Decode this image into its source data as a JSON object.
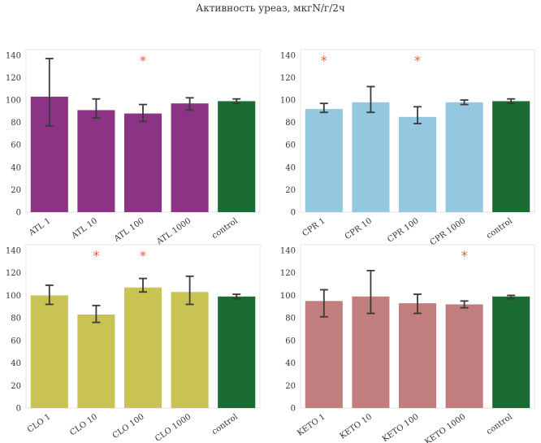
{
  "title": "Активность уреаз, мкгN/г/2ч",
  "colors": {
    "atl": "#8b3384",
    "cpr": "#94c7e0",
    "clo": "#c9c354",
    "keto": "#c17e7e",
    "control": "#1d6b34",
    "star": "#f05a3c",
    "error_bar": "#3a3a3a",
    "panel_border": "#e3e3e3"
  },
  "chart_data": [
    {
      "type": "bar",
      "categories": [
        "ATL 1",
        "ATL 10",
        "ATL 100",
        "ATL 1000",
        "control"
      ],
      "values": [
        103,
        91,
        88,
        97,
        99
      ],
      "errors": [
        [
          77,
          137
        ],
        [
          84,
          101
        ],
        [
          81,
          96
        ],
        [
          91,
          102
        ],
        [
          97,
          101
        ]
      ],
      "significant": [
        false,
        false,
        true,
        false,
        false
      ],
      "ylim": [
        0,
        145
      ],
      "yticks": [
        0,
        20,
        40,
        60,
        80,
        100,
        120,
        140
      ],
      "star_label": "*",
      "grid": false
    },
    {
      "type": "bar",
      "categories": [
        "CPR 1",
        "CPR 10",
        "CPR 100",
        "CPR 1000",
        "control"
      ],
      "values": [
        92,
        98,
        85,
        98,
        99
      ],
      "errors": [
        [
          89,
          97
        ],
        [
          89,
          112
        ],
        [
          79,
          94
        ],
        [
          96,
          100
        ],
        [
          97,
          101
        ]
      ],
      "significant": [
        true,
        false,
        true,
        false,
        false
      ],
      "ylim": [
        0,
        145
      ],
      "yticks": [
        0,
        20,
        40,
        60,
        80,
        100,
        120,
        140
      ],
      "star_label": "*",
      "grid": false
    },
    {
      "type": "bar",
      "categories": [
        "CLO 1",
        "CLO 10",
        "CLO 100",
        "CLO 1000",
        "control"
      ],
      "values": [
        100,
        83,
        107,
        103,
        99
      ],
      "errors": [
        [
          92,
          109
        ],
        [
          76,
          91
        ],
        [
          103,
          115
        ],
        [
          92,
          117
        ],
        [
          97,
          101
        ]
      ],
      "significant": [
        false,
        true,
        true,
        false,
        false
      ],
      "ylim": [
        0,
        145
      ],
      "yticks": [
        0,
        20,
        40,
        60,
        80,
        100,
        120,
        140
      ],
      "star_label": "*",
      "grid": false
    },
    {
      "type": "bar",
      "categories": [
        "KETO 1",
        "KETO 10",
        "KETO 100",
        "KETO 1000",
        "control"
      ],
      "values": [
        95,
        99,
        93,
        92,
        99
      ],
      "errors": [
        [
          81,
          105
        ],
        [
          84,
          122
        ],
        [
          84,
          101
        ],
        [
          89,
          95
        ],
        [
          97,
          100
        ]
      ],
      "significant": [
        false,
        false,
        false,
        true,
        false
      ],
      "ylim": [
        0,
        145
      ],
      "yticks": [
        0,
        20,
        40,
        60,
        80,
        100,
        120,
        140
      ],
      "star_label": "*",
      "grid": false
    }
  ]
}
